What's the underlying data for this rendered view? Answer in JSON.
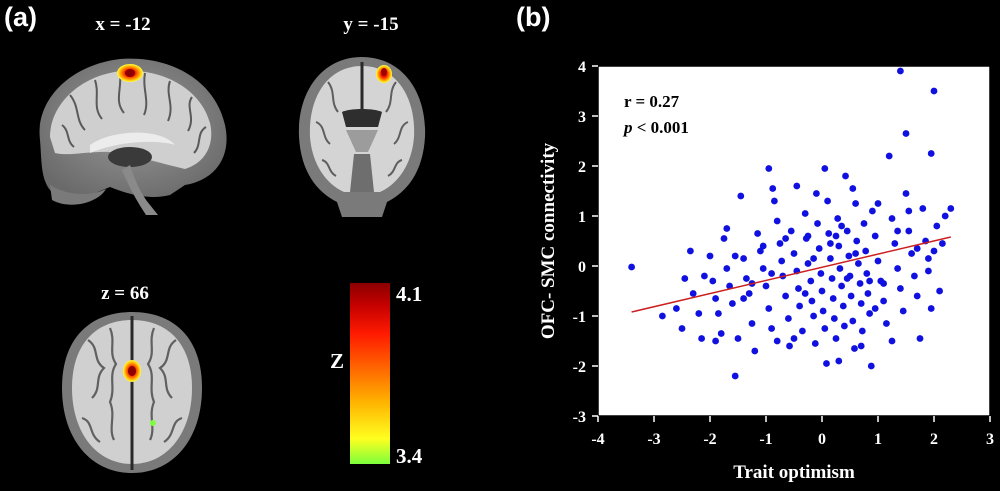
{
  "panel_a": {
    "label": "(a)",
    "sagittal_label": "x = -12",
    "coronal_label": "y = -15",
    "axial_label": "z = 66",
    "colorbar": {
      "axis": "Z",
      "max": "4.1",
      "min": "3.4"
    }
  },
  "panel_b": {
    "label": "(b)",
    "stat_r": "r = 0.27",
    "stat_p_symbol": "p",
    "stat_p_rest": " < 0.001"
  },
  "chart_data": {
    "type": "scatter",
    "xlabel": "Trait optimism",
    "ylabel": "OFC- SMC connectivity",
    "xlim": [
      -4,
      3
    ],
    "ylim": [
      -3,
      4
    ],
    "xticks": [
      -4,
      -3,
      -2,
      -1,
      0,
      1,
      2,
      3
    ],
    "yticks": [
      -3,
      -2,
      -1,
      0,
      1,
      2,
      3,
      4
    ],
    "grid": false,
    "colors": {
      "points": "#1010e0",
      "fit_line": "#cc2020"
    },
    "fit_line": {
      "x": [
        -3.4,
        2.3
      ],
      "y": [
        -0.92,
        0.58
      ]
    },
    "points": [
      [
        -3.4,
        -0.02
      ],
      [
        -2.85,
        -1.0
      ],
      [
        -2.6,
        -0.85
      ],
      [
        -2.5,
        -1.25
      ],
      [
        -2.35,
        0.3
      ],
      [
        -2.3,
        -0.55
      ],
      [
        -2.2,
        -0.95
      ],
      [
        -2.15,
        -1.45
      ],
      [
        -2.1,
        -0.2
      ],
      [
        -2.0,
        0.2
      ],
      [
        -1.95,
        -0.3
      ],
      [
        -1.9,
        -0.65
      ],
      [
        -1.85,
        -0.95
      ],
      [
        -1.8,
        -1.35
      ],
      [
        -1.75,
        0.55
      ],
      [
        -1.7,
        -0.05
      ],
      [
        -1.65,
        -0.4
      ],
      [
        -1.6,
        -0.75
      ],
      [
        -1.55,
        -2.2
      ],
      [
        -1.5,
        -1.45
      ],
      [
        -1.45,
        1.4
      ],
      [
        -1.4,
        0.15
      ],
      [
        -1.35,
        -0.25
      ],
      [
        -1.3,
        -0.55
      ],
      [
        -1.25,
        -1.15
      ],
      [
        -1.2,
        -1.7
      ],
      [
        -1.15,
        0.65
      ],
      [
        -1.1,
        0.3
      ],
      [
        -1.05,
        -0.05
      ],
      [
        -1.0,
        -0.4
      ],
      [
        -0.95,
        -0.85
      ],
      [
        -0.9,
        -1.25
      ],
      [
        -0.88,
        1.55
      ],
      [
        -0.85,
        1.3
      ],
      [
        -0.8,
        0.9
      ],
      [
        -0.75,
        0.45
      ],
      [
        -0.72,
        0.1
      ],
      [
        -0.7,
        -0.2
      ],
      [
        -0.65,
        -0.6
      ],
      [
        -0.6,
        -1.05
      ],
      [
        -0.58,
        -1.6
      ],
      [
        -0.55,
        0.7
      ],
      [
        -0.5,
        0.25
      ],
      [
        -0.45,
        -0.1
      ],
      [
        -0.42,
        -0.45
      ],
      [
        -0.4,
        -0.8
      ],
      [
        -0.35,
        -1.3
      ],
      [
        -0.3,
        1.05
      ],
      [
        -0.28,
        0.55
      ],
      [
        -0.25,
        0.05
      ],
      [
        -0.2,
        -0.3
      ],
      [
        -0.18,
        -0.7
      ],
      [
        -0.15,
        -1.0
      ],
      [
        -0.12,
        -1.55
      ],
      [
        -0.1,
        1.45
      ],
      [
        -0.08,
        0.85
      ],
      [
        -0.05,
        0.35
      ],
      [
        -0.02,
        -0.15
      ],
      [
        0.0,
        -0.5
      ],
      [
        0.02,
        -0.9
      ],
      [
        0.05,
        -1.25
      ],
      [
        0.08,
        -1.95
      ],
      [
        0.1,
        1.3
      ],
      [
        0.12,
        0.65
      ],
      [
        0.15,
        0.15
      ],
      [
        0.18,
        -0.25
      ],
      [
        0.2,
        -0.65
      ],
      [
        0.22,
        -1.05
      ],
      [
        0.25,
        -1.45
      ],
      [
        0.28,
        0.95
      ],
      [
        0.3,
        0.4
      ],
      [
        0.32,
        -0.05
      ],
      [
        0.35,
        -0.4
      ],
      [
        0.38,
        -0.8
      ],
      [
        0.4,
        -1.2
      ],
      [
        0.42,
        1.8
      ],
      [
        0.45,
        0.7
      ],
      [
        0.48,
        0.2
      ],
      [
        0.5,
        -0.2
      ],
      [
        0.52,
        -0.6
      ],
      [
        0.55,
        -1.1
      ],
      [
        0.58,
        -1.65
      ],
      [
        0.6,
        1.25
      ],
      [
        0.62,
        0.5
      ],
      [
        0.65,
        0.05
      ],
      [
        0.68,
        -0.35
      ],
      [
        0.7,
        -0.75
      ],
      [
        0.72,
        -1.3
      ],
      [
        0.75,
        0.85
      ],
      [
        0.78,
        0.3
      ],
      [
        0.8,
        -0.15
      ],
      [
        0.82,
        -0.55
      ],
      [
        0.85,
        -0.95
      ],
      [
        0.88,
        -2.0
      ],
      [
        0.9,
        1.1
      ],
      [
        0.95,
        0.6
      ],
      [
        1.0,
        0.1
      ],
      [
        1.05,
        -0.3
      ],
      [
        1.1,
        -0.7
      ],
      [
        1.15,
        -1.15
      ],
      [
        1.2,
        2.2
      ],
      [
        1.25,
        0.95
      ],
      [
        1.3,
        0.45
      ],
      [
        1.35,
        -0.05
      ],
      [
        1.4,
        -0.45
      ],
      [
        1.45,
        -0.9
      ],
      [
        1.5,
        1.45
      ],
      [
        1.55,
        0.7
      ],
      [
        1.6,
        0.25
      ],
      [
        1.65,
        -0.2
      ],
      [
        1.7,
        -0.6
      ],
      [
        1.75,
        -1.45
      ],
      [
        1.8,
        1.15
      ],
      [
        1.85,
        0.5
      ],
      [
        1.9,
        -0.1
      ],
      [
        1.95,
        -0.85
      ],
      [
        2.0,
        0.3
      ],
      [
        2.05,
        0.8
      ],
      [
        2.1,
        -0.5
      ],
      [
        2.15,
        0.45
      ],
      [
        2.2,
        1.0
      ],
      [
        2.3,
        1.15
      ],
      [
        1.4,
        3.9
      ],
      [
        2.0,
        3.5
      ],
      [
        1.5,
        2.65
      ],
      [
        1.95,
        2.25
      ],
      [
        0.55,
        1.55
      ],
      [
        -0.95,
        1.95
      ],
      [
        -0.45,
        1.6
      ],
      [
        0.05,
        1.95
      ],
      [
        1.0,
        1.25
      ],
      [
        -1.7,
        0.75
      ],
      [
        0.35,
        0.8
      ],
      [
        -0.25,
        0.6
      ],
      [
        1.55,
        1.1
      ],
      [
        -1.4,
        -0.65
      ],
      [
        0.7,
        -1.6
      ],
      [
        -0.8,
        -1.5
      ],
      [
        0.3,
        -1.9
      ],
      [
        1.25,
        -1.5
      ],
      [
        -1.9,
        -1.5
      ],
      [
        -0.5,
        -1.45
      ],
      [
        1.1,
        -0.35
      ],
      [
        -0.65,
        0.55
      ],
      [
        0.15,
        0.45
      ],
      [
        0.6,
        0.25
      ],
      [
        -1.05,
        0.4
      ],
      [
        1.7,
        0.35
      ],
      [
        -0.3,
        -0.55
      ],
      [
        0.85,
        -0.3
      ],
      [
        -1.25,
        -0.35
      ],
      [
        0.45,
        -0.25
      ],
      [
        1.35,
        0.7
      ],
      [
        -0.15,
        0.15
      ],
      [
        -0.9,
        -0.15
      ],
      [
        0.25,
        0.6
      ],
      [
        1.9,
        0.15
      ],
      [
        -2.45,
        -0.25
      ],
      [
        -1.55,
        0.2
      ],
      [
        0.95,
        -0.85
      ]
    ]
  }
}
